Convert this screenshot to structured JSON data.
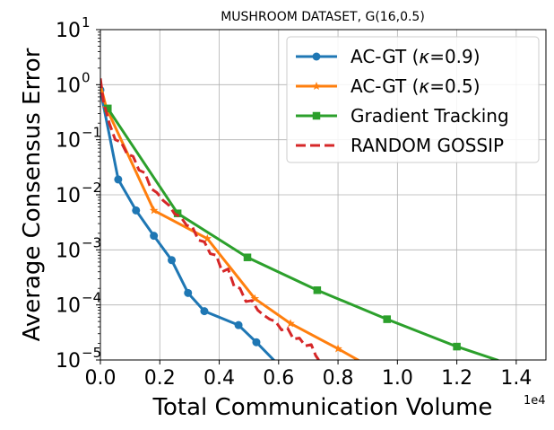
{
  "chart_data": {
    "type": "line",
    "title": "MUSHROOM DATASET, G(16,0.5)",
    "xlabel": "Total Communication Volume",
    "ylabel": "Average Consensus Error",
    "x_scale_label": "1e4",
    "xlim": [
      0,
      15000
    ],
    "ylim": [
      1e-05,
      10
    ],
    "y_scale": "log",
    "grid": true,
    "legend_position": "top-right",
    "x_ticks": [
      {
        "value": 0,
        "label": "0.0"
      },
      {
        "value": 2000,
        "label": "0.2"
      },
      {
        "value": 4000,
        "label": "0.4"
      },
      {
        "value": 6000,
        "label": "0.6"
      },
      {
        "value": 8000,
        "label": "0.8"
      },
      {
        "value": 10000,
        "label": "1.0"
      },
      {
        "value": 12000,
        "label": "1.2"
      },
      {
        "value": 14000,
        "label": "1.4"
      }
    ],
    "y_ticks": [
      {
        "value": 10,
        "base": "10",
        "exp": "1"
      },
      {
        "value": 1,
        "base": "10",
        "exp": "0"
      },
      {
        "value": 0.1,
        "base": "10",
        "exp": "−1"
      },
      {
        "value": 0.01,
        "base": "10",
        "exp": "−2"
      },
      {
        "value": 0.001,
        "base": "10",
        "exp": "−3"
      },
      {
        "value": 0.0001,
        "base": "10",
        "exp": "−4"
      },
      {
        "value": 1e-05,
        "base": "10",
        "exp": "−5"
      }
    ],
    "series": [
      {
        "name": "AC-GT (κ=0.9)",
        "legend_prefix": "AC-GT (",
        "legend_symbol": "κ",
        "legend_suffix": "=0.9)",
        "color": "#1f77b4",
        "marker": "circle",
        "dashed": false,
        "x": [
          0,
          600,
          1200,
          1800,
          2400,
          2950,
          3500,
          4650,
          5250,
          5850
        ],
        "y": [
          0.8,
          0.019,
          0.0052,
          0.0018,
          0.00065,
          0.000165,
          7.7e-05,
          4.3e-05,
          2.1e-05,
          9.8e-06
        ],
        "marker_x": [
          0,
          600,
          1200,
          1800,
          2400,
          2950,
          3500,
          4650,
          5250
        ],
        "marker_y": [
          0.8,
          0.019,
          0.0052,
          0.0018,
          0.00065,
          0.000165,
          7.7e-05,
          4.3e-05,
          2.1e-05
        ]
      },
      {
        "name": "AC-GT (κ=0.5)",
        "legend_prefix": "AC-GT (",
        "legend_symbol": "κ",
        "legend_suffix": "=0.5)",
        "color": "#ff7f0e",
        "marker": "star",
        "dashed": false,
        "x": [
          0,
          200,
          1800,
          3600,
          5200,
          6400,
          8000,
          8700
        ],
        "y": [
          1.0,
          0.38,
          0.0052,
          0.0016,
          0.00013,
          4.6e-05,
          1.6e-05,
          9.8e-06
        ],
        "marker_x": [
          200,
          1800,
          3600,
          5200,
          6400,
          8000
        ],
        "marker_y": [
          0.38,
          0.0052,
          0.0016,
          0.00013,
          4.6e-05,
          1.6e-05
        ]
      },
      {
        "name": "Gradient Tracking",
        "color": "#2ca02c",
        "marker": "square",
        "dashed": false,
        "x": [
          250,
          2600,
          4950,
          7300,
          9650,
          12000,
          13400
        ],
        "y": [
          0.37,
          0.0046,
          0.00073,
          0.000185,
          5.5e-05,
          1.75e-05,
          9.8e-06
        ],
        "marker_x": [
          250,
          2600,
          4950,
          7300,
          9650,
          12000
        ],
        "marker_y": [
          0.37,
          0.0046,
          0.00073,
          0.000185,
          5.5e-05,
          1.75e-05
        ]
      },
      {
        "name": "RANDOM GOSSIP",
        "color": "#d62728",
        "marker": "none",
        "dashed": true,
        "x": [
          0,
          100,
          300,
          500,
          700,
          900,
          1100,
          1300,
          1500,
          1700,
          1900,
          2100,
          2300,
          2500,
          2700,
          2900,
          3100,
          3300,
          3500,
          3700,
          3900,
          4100,
          4300,
          4500,
          4700,
          4900,
          5100,
          5300,
          5500,
          5700,
          5900,
          6100,
          6300,
          6500,
          6700,
          6900,
          7100,
          7250,
          7350
        ],
        "y": [
          1.3,
          0.5,
          0.2,
          0.1,
          0.09,
          0.055,
          0.05,
          0.028,
          0.025,
          0.013,
          0.011,
          0.008,
          0.0065,
          0.0045,
          0.004,
          0.0028,
          0.0026,
          0.0015,
          0.0014,
          0.00085,
          0.0008,
          0.0004,
          0.00045,
          0.00022,
          0.0002,
          0.000115,
          0.00012,
          8e-05,
          6.5e-05,
          5.5e-05,
          5e-05,
          3.5e-05,
          3.8e-05,
          2.4e-05,
          2.5e-05,
          1.8e-05,
          1.9e-05,
          1.2e-05,
          1e-05
        ]
      }
    ]
  }
}
